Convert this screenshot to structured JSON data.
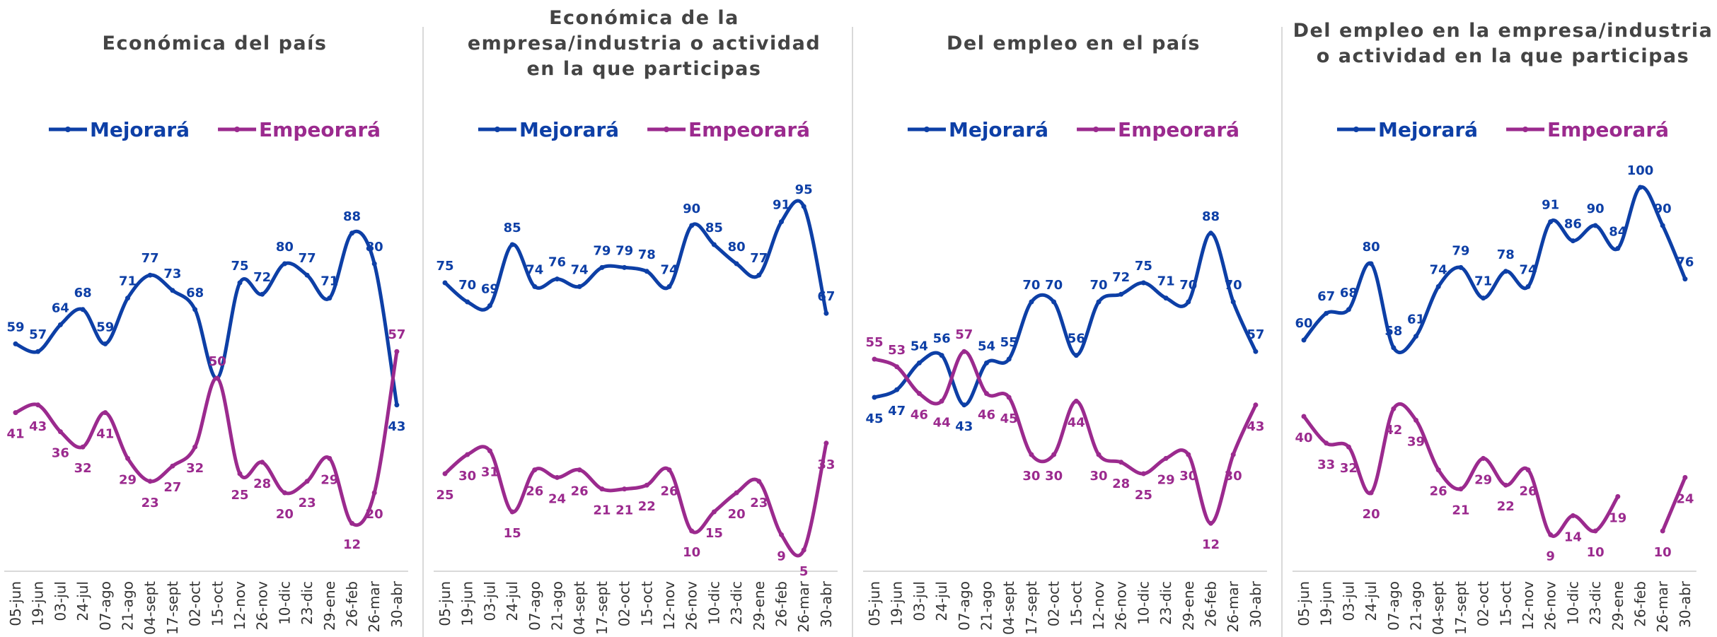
{
  "chart_data": [
    {
      "type": "line",
      "title": "Económica del país",
      "categories": [
        "05-jun",
        "19-jun",
        "03-jul",
        "24-jul",
        "07-ago",
        "21-ago",
        "04-sept",
        "17-sept",
        "02-oct",
        "15-oct",
        "12-nov",
        "26-nov",
        "10-dic",
        "23-dic",
        "29-ene",
        "26-feb",
        "26-mar",
        "30-abr"
      ],
      "series": [
        {
          "name": "Mejorará",
          "color": "#0d3fa6",
          "values": [
            59,
            57,
            64,
            68,
            59,
            71,
            77,
            73,
            68,
            50,
            75,
            72,
            80,
            77,
            71,
            88,
            80,
            43
          ]
        },
        {
          "name": "Empeorará",
          "color": "#9b2a8e",
          "values": [
            41,
            43,
            36,
            32,
            41,
            29,
            23,
            27,
            32,
            50,
            25,
            28,
            20,
            23,
            29,
            12,
            20,
            57
          ]
        }
      ]
    },
    {
      "type": "line",
      "title": "Económica de la empresa/industria o actividad en la que participas",
      "categories": [
        "05-jun",
        "19-jun",
        "03-jul",
        "24-jul",
        "07-ago",
        "21-ago",
        "04-sept",
        "17-sept",
        "02-oct",
        "15-oct",
        "12-nov",
        "26-nov",
        "10-dic",
        "23-dic",
        "29-ene",
        "26-feb",
        "26-mar",
        "30-abr"
      ],
      "series": [
        {
          "name": "Mejorará",
          "color": "#0d3fa6",
          "values": [
            75,
            70,
            69,
            85,
            74,
            76,
            74,
            79,
            79,
            78,
            74,
            90,
            85,
            80,
            77,
            91,
            95,
            67
          ]
        },
        {
          "name": "Empeorará",
          "color": "#9b2a8e",
          "values": [
            25,
            30,
            31,
            15,
            26,
            24,
            26,
            21,
            21,
            22,
            26,
            10,
            15,
            20,
            23,
            9,
            5,
            33
          ]
        }
      ]
    },
    {
      "type": "line",
      "title": "Del empleo en el país",
      "categories": [
        "05-jun",
        "19-jun",
        "03-jul",
        "24-jul",
        "07-ago",
        "21-ago",
        "04-sept",
        "17-sept",
        "02-oct",
        "15-oct",
        "12-nov",
        "26-nov",
        "10-dic",
        "23-dic",
        "29-ene",
        "26-feb",
        "26-mar",
        "30-abr"
      ],
      "series": [
        {
          "name": "Mejorará",
          "color": "#0d3fa6",
          "values": [
            45,
            47,
            54,
            56,
            43,
            54,
            55,
            70,
            70,
            56,
            70,
            72,
            75,
            71,
            70,
            88,
            70,
            57
          ]
        },
        {
          "name": "Empeorará",
          "color": "#9b2a8e",
          "values": [
            55,
            53,
            46,
            44,
            57,
            46,
            45,
            30,
            30,
            44,
            30,
            28,
            25,
            29,
            30,
            12,
            30,
            43
          ]
        }
      ]
    },
    {
      "type": "line",
      "title": "Del empleo en la empresa/industria o actividad en la que participas",
      "categories": [
        "05-jun",
        "19-jun",
        "03-jul",
        "24-jul",
        "07-ago",
        "21-ago",
        "04-sept",
        "17-sept",
        "02-oct",
        "15-oct",
        "12-nov",
        "26-nov",
        "10-dic",
        "23-dic",
        "29-ene",
        "26-feb",
        "26-mar",
        "30-abr"
      ],
      "series": [
        {
          "name": "Mejorará",
          "color": "#0d3fa6",
          "values": [
            60,
            67,
            68,
            80,
            58,
            61,
            74,
            79,
            71,
            78,
            74,
            91,
            86,
            90,
            84,
            100,
            90,
            76
          ]
        },
        {
          "name": "Empeorará",
          "color": "#9b2a8e",
          "values": [
            40,
            33,
            32,
            20,
            42,
            39,
            26,
            21,
            29,
            22,
            26,
            9,
            14,
            10,
            19,
            null,
            10,
            24
          ]
        }
      ]
    }
  ]
}
